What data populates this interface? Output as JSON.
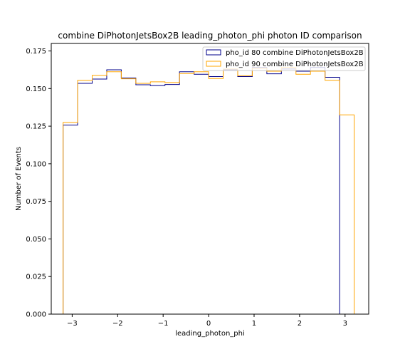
{
  "chart_data": {
    "type": "histogram",
    "title": "combine DiPhotonJetsBox2B leading_photon_phi photon ID comparison",
    "xlabel": "leading_photon_phi",
    "ylabel": "Number of Events",
    "xlim": [
      -3.46,
      3.52
    ],
    "ylim": [
      0.0,
      0.18
    ],
    "xticks": [
      -3,
      -2,
      -1,
      0,
      1,
      2,
      3
    ],
    "xtick_labels": [
      "−3",
      "−2",
      "−1",
      "0",
      "1",
      "2",
      "3"
    ],
    "yticks": [
      0.0,
      0.025,
      0.05,
      0.075,
      0.1,
      0.125,
      0.15,
      0.175
    ],
    "ytick_labels": [
      "0.000",
      "0.025",
      "0.050",
      "0.075",
      "0.100",
      "0.125",
      "0.150",
      "0.175"
    ],
    "bin_edges": [
      -3.2,
      -2.88,
      -2.56,
      -2.24,
      -1.92,
      -1.6,
      -1.28,
      -0.96,
      -0.64,
      -0.32,
      0.0,
      0.32,
      0.64,
      0.96,
      1.28,
      1.6,
      1.92,
      2.24,
      2.56,
      2.88,
      3.2
    ],
    "legend_position": "top-right",
    "series": [
      {
        "name": "pho_id 80 combine DiPhotonJetsBox2B",
        "color": "#00008b",
        "values": [
          0.1257,
          0.1535,
          0.1563,
          0.1625,
          0.157,
          0.1525,
          0.152,
          0.1527,
          0.1612,
          0.1595,
          0.158,
          0.1625,
          0.158,
          0.164,
          0.1598,
          0.163,
          0.1615,
          0.164,
          0.1575,
          0.0
        ]
      },
      {
        "name": "pho_id 90 combine DiPhotonJetsBox2B",
        "color": "#ffa500",
        "values": [
          0.1275,
          0.1555,
          0.1588,
          0.1612,
          0.1565,
          0.1535,
          0.1545,
          0.154,
          0.16,
          0.1612,
          0.1567,
          0.163,
          0.1585,
          0.1635,
          0.1615,
          0.164,
          0.1595,
          0.1615,
          0.1555,
          0.1325
        ]
      }
    ]
  }
}
